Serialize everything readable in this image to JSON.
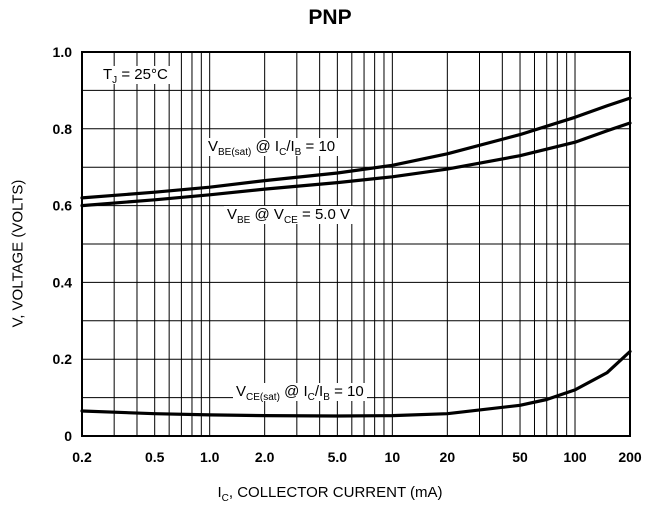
{
  "chart_data": {
    "type": "line",
    "title": "PNP",
    "xlabel": {
      "main": "I",
      "sub": "C",
      "rest": ", COLLECTOR CURRENT (mA)"
    },
    "ylabel": "V, VOLTAGE (VOLTS)",
    "x_scale": "log",
    "xlim": [
      0.2,
      200
    ],
    "ylim": [
      0,
      1.0
    ],
    "x_ticks": [
      0.2,
      0.5,
      1.0,
      2.0,
      5.0,
      10,
      20,
      50,
      100,
      200
    ],
    "x_tick_labels": [
      "0.2",
      "0.5",
      "1.0",
      "2.0",
      "5.0",
      "10",
      "20",
      "50",
      "100",
      "200"
    ],
    "y_ticks": [
      0,
      0.2,
      0.4,
      0.6,
      0.8,
      1.0
    ],
    "y_tick_labels": [
      "0",
      "0.2",
      "0.4",
      "0.6",
      "0.8",
      "1.0"
    ],
    "grid": true,
    "series": [
      {
        "name": "VBE(sat) @ IC/IB = 10",
        "x": [
          0.2,
          0.5,
          1.0,
          2.0,
          5.0,
          10,
          20,
          50,
          100,
          150,
          200
        ],
        "y": [
          0.62,
          0.635,
          0.648,
          0.665,
          0.685,
          0.705,
          0.735,
          0.785,
          0.83,
          0.86,
          0.88
        ]
      },
      {
        "name": "VBE @ VCE = 5.0 V",
        "x": [
          0.2,
          0.5,
          1.0,
          2.0,
          5.0,
          10,
          20,
          50,
          100,
          150,
          200
        ],
        "y": [
          0.6,
          0.615,
          0.628,
          0.643,
          0.66,
          0.675,
          0.695,
          0.73,
          0.765,
          0.795,
          0.815
        ]
      },
      {
        "name": "VCE(sat) @ IC/IB = 10",
        "x": [
          0.2,
          0.5,
          1.0,
          2.0,
          5.0,
          10,
          20,
          50,
          70,
          100,
          150,
          200
        ],
        "y": [
          0.065,
          0.058,
          0.055,
          0.053,
          0.052,
          0.053,
          0.058,
          0.08,
          0.095,
          0.12,
          0.165,
          0.22
        ]
      }
    ],
    "annotations": {
      "tj": {
        "a": "T",
        "a_sub": "J",
        "b": " = 25°C"
      },
      "vbe_sat": {
        "a": "V",
        "a_sub": "BE(sat)",
        "b": " @ I",
        "b_sub": "C",
        "c": "/I",
        "c_sub": "B",
        "d": " = 10"
      },
      "vbe": {
        "a": "V",
        "a_sub": "BE",
        "b": " @ V",
        "b_sub": "CE",
        "c": " = 5.0 V"
      },
      "vce_sat": {
        "a": "V",
        "a_sub": "CE(sat)",
        "b": " @ I",
        "b_sub": "C",
        "c": "/I",
        "c_sub": "B",
        "d": " = 10"
      }
    }
  }
}
